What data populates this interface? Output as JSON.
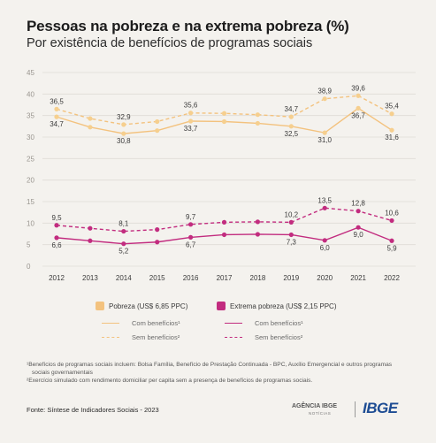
{
  "title": "Pessoas na pobreza e na extrema pobreza (%)",
  "subtitle": "Por existência de benefícios de programas sociais",
  "colors": {
    "pobreza": "#f3c27e",
    "pobreza_marker": "#f6cf8e",
    "extrema": "#c22c7f",
    "grid": "#dedbd6",
    "axis_text": "#9a9690"
  },
  "chart_data": {
    "type": "line",
    "x": [
      "2012",
      "2013",
      "2014",
      "2015",
      "2016",
      "2017",
      "2018",
      "2019",
      "2020",
      "2021",
      "2022"
    ],
    "ylim": [
      0,
      45
    ],
    "yticks": [
      "0",
      "5",
      "10",
      "15",
      "20",
      "25",
      "30",
      "35",
      "40",
      "45"
    ],
    "series": [
      {
        "name": "Pobreza (US$ 6,85 PPC) - Sem benefícios²",
        "group": "pobreza",
        "dashed": true,
        "values": [
          36.5,
          34.3,
          32.9,
          33.6,
          35.6,
          35.5,
          35.2,
          34.7,
          38.9,
          39.6,
          35.4
        ]
      },
      {
        "name": "Pobreza (US$ 6,85 PPC) - Com benefícios¹",
        "group": "pobreza",
        "dashed": false,
        "values": [
          34.7,
          32.3,
          30.8,
          31.5,
          33.7,
          33.6,
          33.2,
          32.5,
          31.0,
          36.7,
          31.6
        ]
      },
      {
        "name": "Extrema pobreza (US$ 2,15 PPC) - Sem benefícios²",
        "group": "extrema",
        "dashed": true,
        "values": [
          9.5,
          8.8,
          8.1,
          8.5,
          9.7,
          10.2,
          10.3,
          10.2,
          13.5,
          12.8,
          10.6
        ]
      },
      {
        "name": "Extrema pobreza (US$ 2,15 PPC) - Com benefícios¹",
        "group": "extrema",
        "dashed": false,
        "values": [
          6.6,
          5.9,
          5.2,
          5.6,
          6.7,
          7.3,
          7.4,
          7.3,
          6.0,
          9.0,
          5.9
        ]
      }
    ],
    "data_labels": [
      {
        "series": 0,
        "index": 0,
        "text": "36,5",
        "pos": "above"
      },
      {
        "series": 0,
        "index": 2,
        "text": "32,9",
        "pos": "above"
      },
      {
        "series": 0,
        "index": 4,
        "text": "35,6",
        "pos": "above"
      },
      {
        "series": 0,
        "index": 7,
        "text": "34,7",
        "pos": "above"
      },
      {
        "series": 0,
        "index": 8,
        "text": "38,9",
        "pos": "above"
      },
      {
        "series": 0,
        "index": 9,
        "text": "39,6",
        "pos": "above"
      },
      {
        "series": 0,
        "index": 10,
        "text": "35,4",
        "pos": "above"
      },
      {
        "series": 1,
        "index": 0,
        "text": "34,7",
        "pos": "below"
      },
      {
        "series": 1,
        "index": 2,
        "text": "30,8",
        "pos": "below"
      },
      {
        "series": 1,
        "index": 4,
        "text": "33,7",
        "pos": "below"
      },
      {
        "series": 1,
        "index": 7,
        "text": "32,5",
        "pos": "below"
      },
      {
        "series": 1,
        "index": 8,
        "text": "31,0",
        "pos": "below"
      },
      {
        "series": 1,
        "index": 9,
        "text": "36,7",
        "pos": "below"
      },
      {
        "series": 1,
        "index": 10,
        "text": "31,6",
        "pos": "below"
      },
      {
        "series": 2,
        "index": 0,
        "text": "9,5",
        "pos": "above"
      },
      {
        "series": 2,
        "index": 2,
        "text": "8,1",
        "pos": "above"
      },
      {
        "series": 2,
        "index": 4,
        "text": "9,7",
        "pos": "above"
      },
      {
        "series": 2,
        "index": 7,
        "text": "10,2",
        "pos": "above"
      },
      {
        "series": 2,
        "index": 8,
        "text": "13,5",
        "pos": "above"
      },
      {
        "series": 2,
        "index": 9,
        "text": "12,8",
        "pos": "above"
      },
      {
        "series": 2,
        "index": 10,
        "text": "10,6",
        "pos": "above"
      },
      {
        "series": 3,
        "index": 0,
        "text": "6,6",
        "pos": "below"
      },
      {
        "series": 3,
        "index": 2,
        "text": "5,2",
        "pos": "below"
      },
      {
        "series": 3,
        "index": 4,
        "text": "6,7",
        "pos": "below"
      },
      {
        "series": 3,
        "index": 7,
        "text": "7,3",
        "pos": "below"
      },
      {
        "series": 3,
        "index": 8,
        "text": "6,0",
        "pos": "below"
      },
      {
        "series": 3,
        "index": 9,
        "text": "9,0",
        "pos": "below"
      },
      {
        "series": 3,
        "index": 10,
        "text": "5,9",
        "pos": "below"
      }
    ],
    "grid": true,
    "legend_placement": "bottom"
  },
  "legend": {
    "pobreza": "Pobreza (US$ 6,85 PPC)",
    "extrema": "Extrema pobreza (US$ 2,15 PPC)",
    "com": "Com benefícios¹",
    "sem": "Sem benefícios²"
  },
  "notes": {
    "note1": "¹Benefícios de programas sociais incluem: Bolsa Família, Benefício de Prestação Continuada - BPC, Auxílio Emergencial e outros programas",
    "note1b": "sociais governamentais",
    "note2": "²Exercício simulado com rendimento domiciliar per capita sem a presença de benefícios de programas sociais."
  },
  "source": "Fonte: Síntese de Indicadores Sociais - 2023",
  "logos": {
    "agencia": "AGÊNCIA IBGE",
    "agencia_sub": "NOTÍCIAS",
    "ibge": "IBGE"
  }
}
